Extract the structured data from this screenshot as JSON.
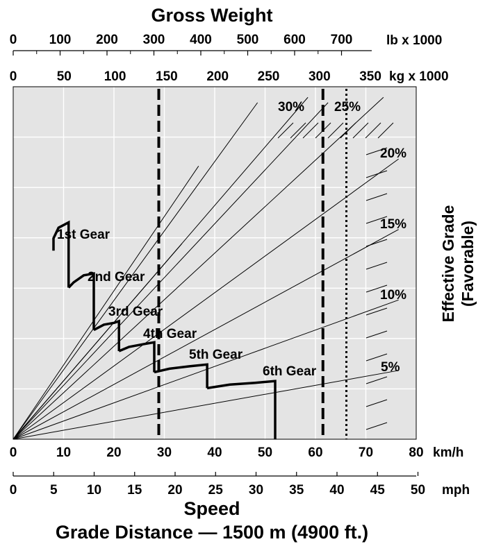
{
  "chart_data": {
    "type": "line",
    "title": "Gross Weight",
    "top_axis_lb": {
      "unit": "lb x 1000",
      "ticks": [
        "0",
        "100",
        "200",
        "300",
        "400",
        "500",
        "600",
        "700"
      ]
    },
    "top_axis_kg": {
      "unit": "kg x 1000",
      "ticks": [
        "0",
        "50",
        "100",
        "150",
        "200",
        "250",
        "300",
        "350"
      ]
    },
    "bottom_axis_kmh": {
      "unit": "km/h",
      "ticks": [
        "0",
        "10",
        "20",
        "30",
        "40",
        "50",
        "60",
        "70",
        "80"
      ],
      "range": [
        0,
        80
      ]
    },
    "bottom_axis_mph": {
      "unit": "mph",
      "ticks": [
        "0",
        "5",
        "10",
        "15",
        "20",
        "25",
        "30",
        "35",
        "40",
        "45",
        "50"
      ]
    },
    "xlabel": "Speed",
    "subtitle": "Grade Distance — 1500 m (4900 ft.)",
    "ylabel": "Effective Grade (Favorable)",
    "right_label_line1": "Effective Grade",
    "right_label_line2": "(Favorable)",
    "grade_lines": [
      {
        "label": "5%",
        "end_kmh": 76.5,
        "end_frac": 0.195
      },
      {
        "label": "10%",
        "end_kmh": 76.5,
        "end_frac": 0.395
      },
      {
        "label": "15%",
        "end_kmh": 76.5,
        "end_frac": 0.595
      },
      {
        "label": "20%",
        "end_kmh": 76.5,
        "end_frac": 0.795
      },
      {
        "label": "25%",
        "end_kmh": 73.5,
        "end_frac": 0.97
      },
      {
        "label": "30%",
        "end_kmh": 58.5,
        "end_frac": 0.97
      }
    ],
    "extra_grade_lines": [
      {
        "end_kmh": 33.5,
        "end_frac": 0.555
      },
      {
        "end_kmh": 36.8,
        "end_frac": 0.775
      },
      {
        "end_kmh": 48.5,
        "end_frac": 0.955
      },
      {
        "end_kmh": 62.5,
        "end_frac": 0.955
      }
    ],
    "gears": [
      {
        "label": "1st Gear",
        "points": [
          [
            8,
            0.535
          ],
          [
            8,
            0.57
          ],
          [
            9,
            0.6
          ],
          [
            11,
            0.615
          ],
          [
            11,
            0.43
          ]
        ]
      },
      {
        "label": "2nd Gear",
        "points": [
          [
            11,
            0.43
          ],
          [
            12,
            0.445
          ],
          [
            14,
            0.465
          ],
          [
            16,
            0.47
          ],
          [
            16,
            0.31
          ]
        ]
      },
      {
        "label": "3rd Gear",
        "points": [
          [
            16,
            0.31
          ],
          [
            18,
            0.325
          ],
          [
            20,
            0.33
          ],
          [
            21,
            0.335
          ],
          [
            21,
            0.25
          ]
        ]
      },
      {
        "label": "4th Gear",
        "points": [
          [
            21,
            0.25
          ],
          [
            23,
            0.262
          ],
          [
            26,
            0.27
          ],
          [
            28,
            0.275
          ],
          [
            28,
            0.19
          ]
        ]
      },
      {
        "label": "5th Gear",
        "points": [
          [
            28,
            0.19
          ],
          [
            31,
            0.2
          ],
          [
            35,
            0.207
          ],
          [
            38.5,
            0.212
          ],
          [
            38.5,
            0.145
          ]
        ]
      },
      {
        "label": "6th Gear",
        "points": [
          [
            38.5,
            0.145
          ],
          [
            43,
            0.155
          ],
          [
            48,
            0.16
          ],
          [
            52,
            0.165
          ],
          [
            52,
            0.0
          ]
        ]
      }
    ],
    "reference_lines": [
      {
        "style": "dash",
        "at_lb": 300
      },
      {
        "style": "dash",
        "at_lb": 650
      },
      {
        "style": "dot",
        "at_lb": 700
      }
    ],
    "grid": true
  }
}
